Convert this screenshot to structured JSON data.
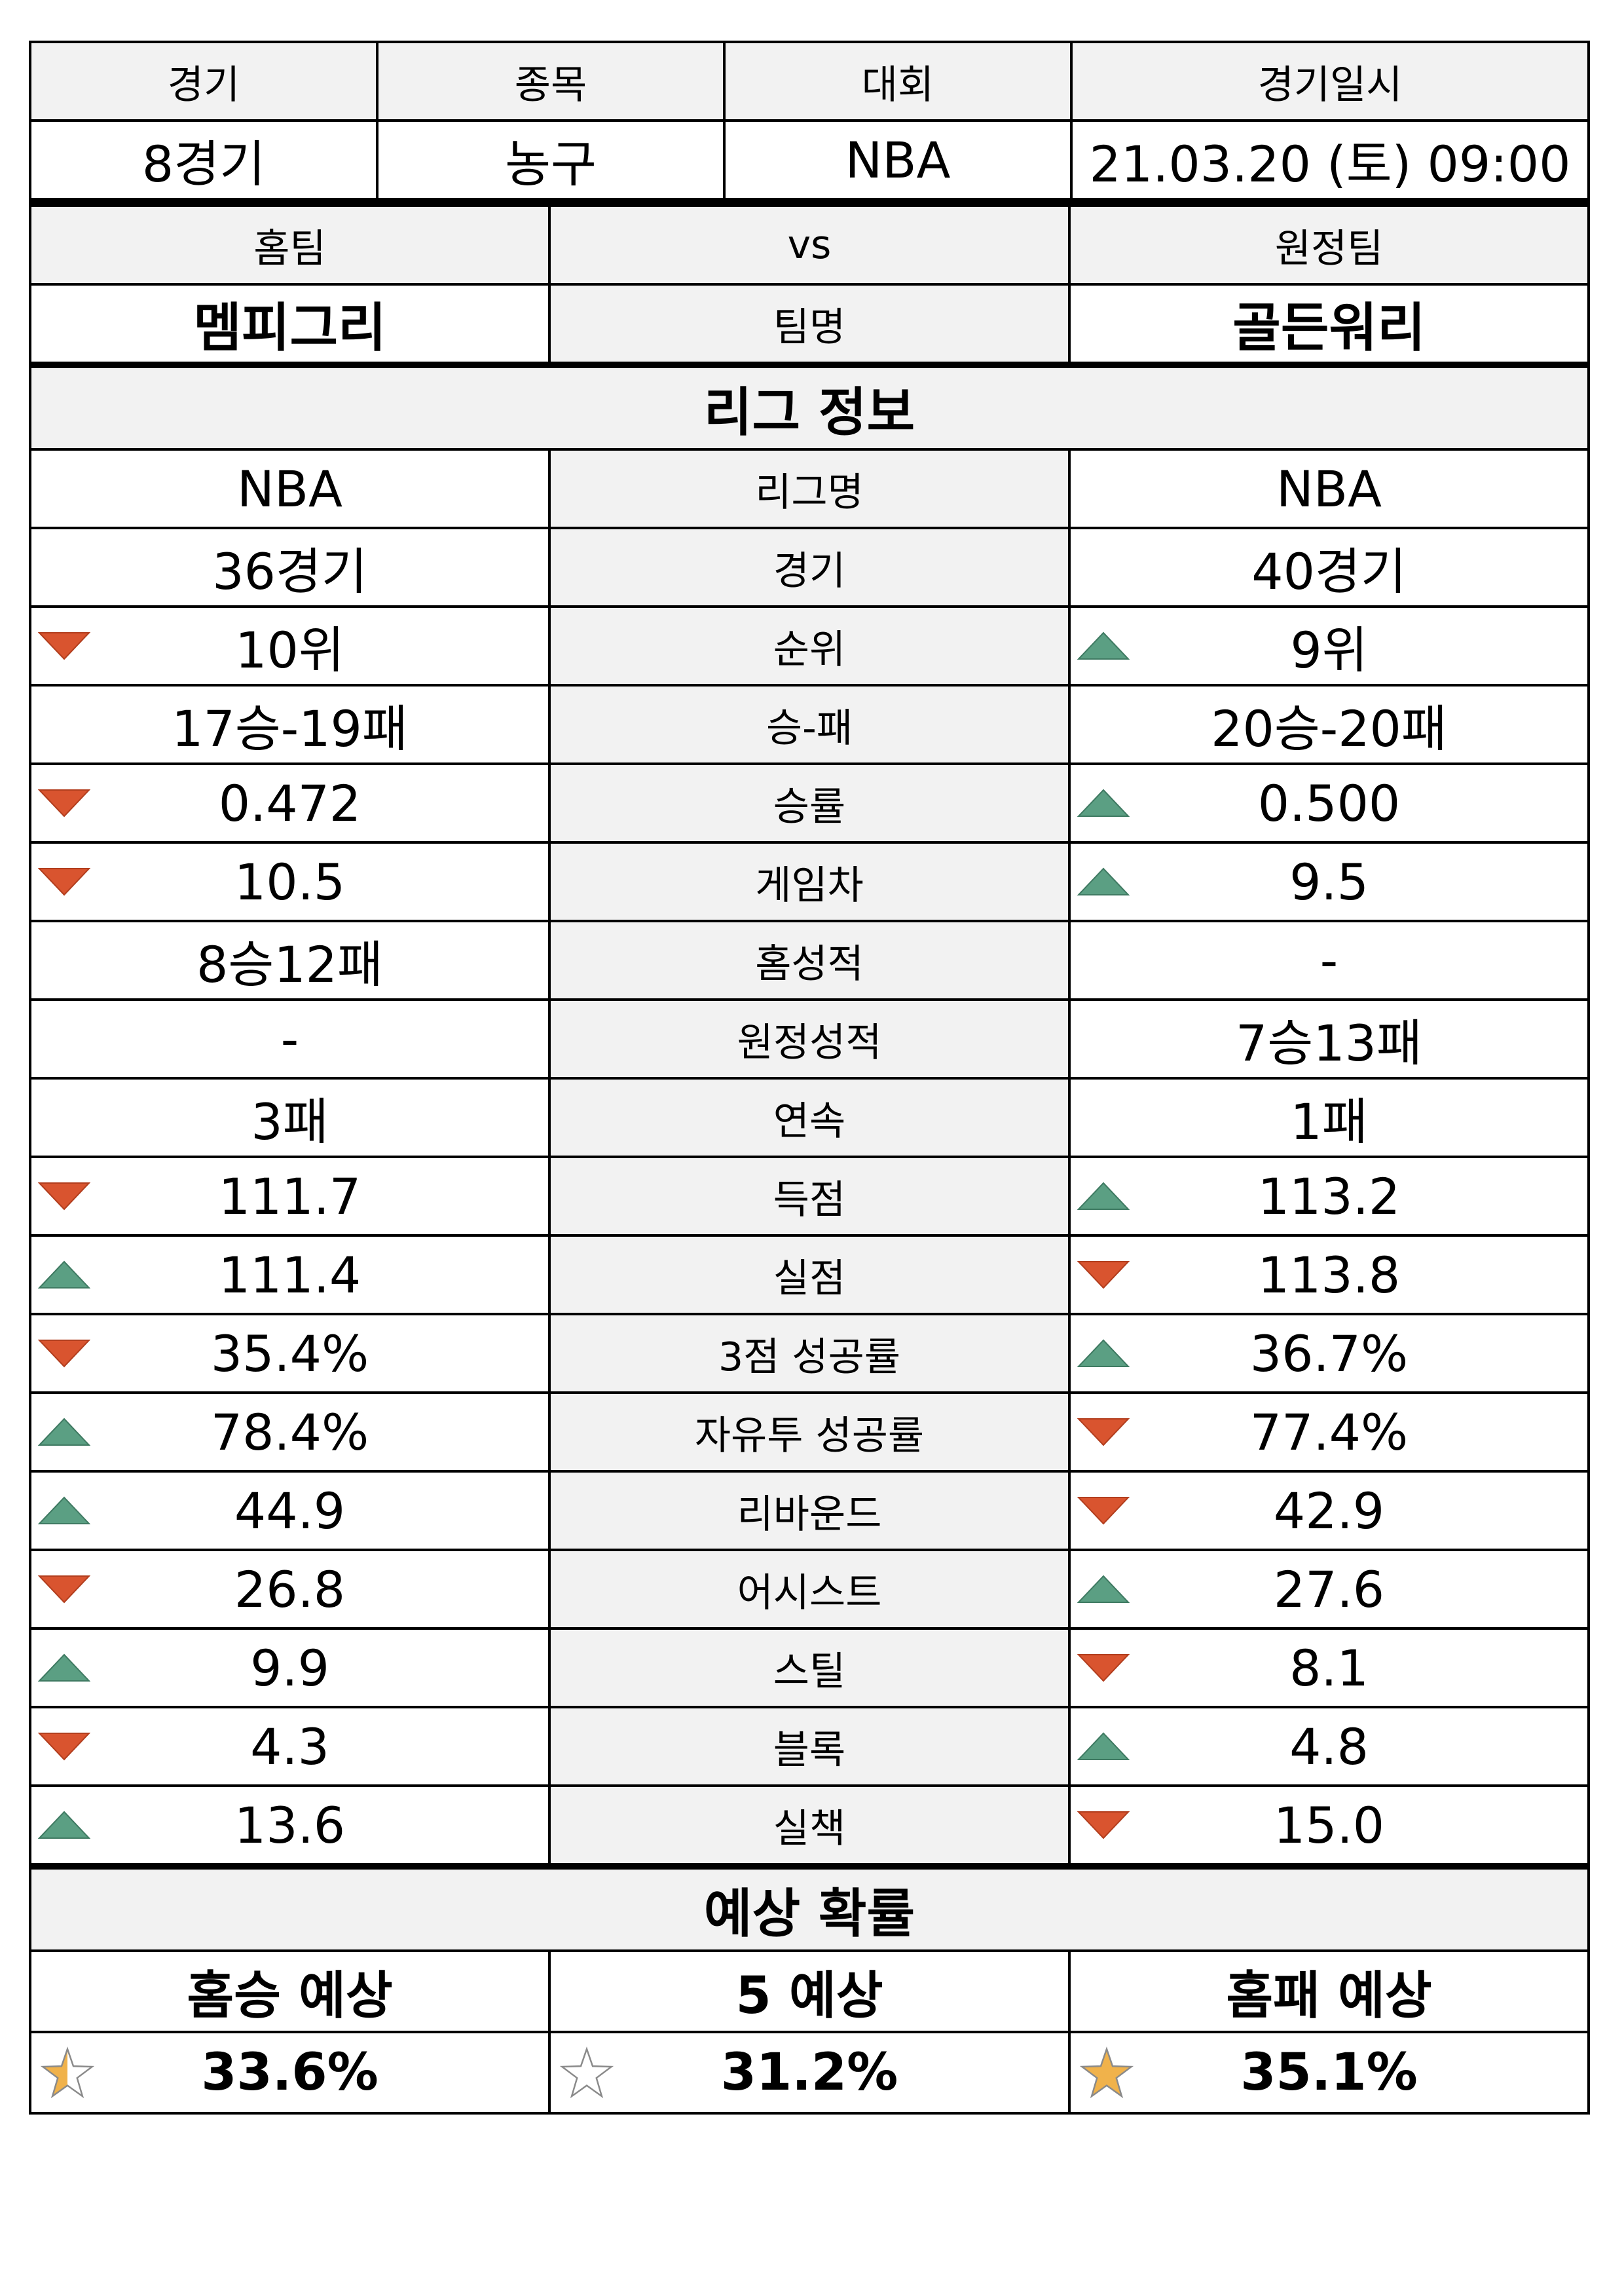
{
  "match_header": {
    "labels": [
      "경기",
      "종목",
      "대회",
      "경기일시"
    ],
    "values": [
      "8경기",
      "농구",
      "NBA",
      "21.03.20 (토) 09:00"
    ]
  },
  "teams": {
    "home_label": "홈팀",
    "vs_label": "vs",
    "away_label": "원정팀",
    "home_name": "멤피그리",
    "name_label": "팀명",
    "away_name": "골든워리"
  },
  "league_info": {
    "title": "리그 정보",
    "rows": [
      {
        "label": "리그명",
        "home": "NBA",
        "away": "NBA",
        "home_trend": "",
        "away_trend": ""
      },
      {
        "label": "경기",
        "home": "36경기",
        "away": "40경기",
        "home_trend": "",
        "away_trend": ""
      },
      {
        "label": "순위",
        "home": "10위",
        "away": "9위",
        "home_trend": "down",
        "away_trend": "up"
      },
      {
        "label": "승-패",
        "home": "17승-19패",
        "away": "20승-20패",
        "home_trend": "",
        "away_trend": ""
      },
      {
        "label": "승률",
        "home": "0.472",
        "away": "0.500",
        "home_trend": "down",
        "away_trend": "up"
      },
      {
        "label": "게임차",
        "home": "10.5",
        "away": "9.5",
        "home_trend": "down",
        "away_trend": "up"
      },
      {
        "label": "홈성적",
        "home": "8승12패",
        "away": "-",
        "home_trend": "",
        "away_trend": ""
      },
      {
        "label": "원정성적",
        "home": "-",
        "away": "7승13패",
        "home_trend": "",
        "away_trend": ""
      },
      {
        "label": "연속",
        "home": "3패",
        "away": "1패",
        "home_trend": "",
        "away_trend": ""
      },
      {
        "label": "득점",
        "home": "111.7",
        "away": "113.2",
        "home_trend": "down",
        "away_trend": "up"
      },
      {
        "label": "실점",
        "home": "111.4",
        "away": "113.8",
        "home_trend": "up",
        "away_trend": "down"
      },
      {
        "label": "3점 성공률",
        "home": "35.4%",
        "away": "36.7%",
        "home_trend": "down",
        "away_trend": "up"
      },
      {
        "label": "자유투 성공률",
        "home": "78.4%",
        "away": "77.4%",
        "home_trend": "up",
        "away_trend": "down"
      },
      {
        "label": "리바운드",
        "home": "44.9",
        "away": "42.9",
        "home_trend": "up",
        "away_trend": "down"
      },
      {
        "label": "어시스트",
        "home": "26.8",
        "away": "27.6",
        "home_trend": "down",
        "away_trend": "up"
      },
      {
        "label": "스틸",
        "home": "9.9",
        "away": "8.1",
        "home_trend": "up",
        "away_trend": "down"
      },
      {
        "label": "블록",
        "home": "4.3",
        "away": "4.8",
        "home_trend": "down",
        "away_trend": "up"
      },
      {
        "label": "실책",
        "home": "13.6",
        "away": "15.0",
        "home_trend": "up",
        "away_trend": "down"
      }
    ]
  },
  "prediction": {
    "title": "예상 확률",
    "items": [
      {
        "label": "홈승 예상",
        "value": "33.6%",
        "star_fill": 0.5
      },
      {
        "label": "5 예상",
        "value": "31.2%",
        "star_fill": 0
      },
      {
        "label": "홈패 예상",
        "value": "35.1%",
        "star_fill": 1
      }
    ]
  },
  "colors": {
    "header_bg": "#f2f2f2",
    "up_arrow": "#5b9f83",
    "down_arrow": "#d9542f",
    "star": "#f0b24b"
  }
}
